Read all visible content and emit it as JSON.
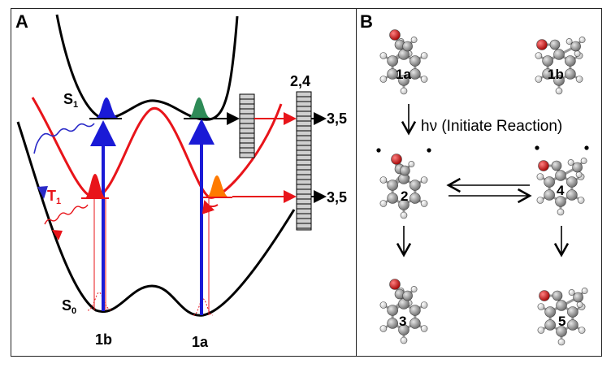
{
  "panel_a": {
    "label": "A",
    "states": {
      "s1": "S",
      "s1_sub": "1",
      "t1": "T",
      "t1_sub": "1",
      "s0": "S",
      "s0_sub": "0"
    },
    "conformers": {
      "left": "1b",
      "right": "1a"
    },
    "top_label": "2,4",
    "product_upper": "3,5",
    "product_lower": "3,5",
    "colors": {
      "s0": "#000000",
      "s1": "#000000",
      "t1": "#e8141a",
      "excitation": "#1a1ad6",
      "s1_packet_left": "#1a1ad6",
      "s1_packet_right": "#2e8b57",
      "t1_packet_left": "#e8141a",
      "t1_packet_right": "#ff7a00",
      "isc_wave": "#2a2ac8",
      "phos_wave": "#e8141a"
    }
  },
  "panel_b": {
    "label": "B",
    "caption": "hν (Initiate Reaction)",
    "molecules": {
      "m1a": "1a",
      "m1b": "1b",
      "m2": "2",
      "m4": "4",
      "m3": "3",
      "m5": "5"
    },
    "colors": {
      "carbon": "#8a8a8a",
      "hydrogen": "#eeeeee",
      "oxygen": "#d40000"
    }
  }
}
